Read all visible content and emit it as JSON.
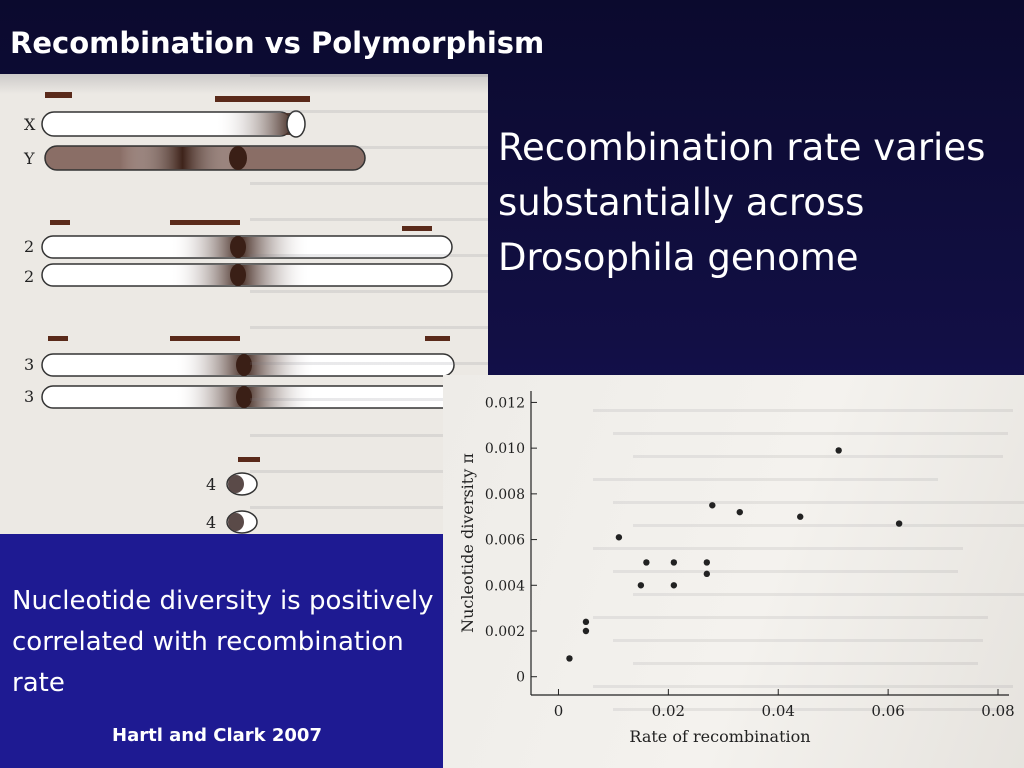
{
  "slide": {
    "title": "Recombination vs Polymorphism",
    "headline": "Recombination rate varies substantially across Drosophila genome",
    "caption": "Nucleotide diversity is positively correlated with recombination rate",
    "citation": "Hartl and Clark 2007"
  },
  "chromosome_figure": {
    "labels": [
      "X",
      "Y",
      "2",
      "2",
      "3",
      "3",
      "4",
      "4"
    ]
  },
  "chart_data": {
    "type": "scatter",
    "xlabel": "Rate of recombination",
    "ylabel": "Nucleotide diversity π",
    "xlim": [
      -0.005,
      0.082
    ],
    "ylim": [
      -0.0008,
      0.0125
    ],
    "xticks": [
      0,
      0.02,
      0.04,
      0.06,
      0.08
    ],
    "xtick_labels": [
      "0",
      "0.02",
      "0.04",
      "0.06",
      "0.08"
    ],
    "yticks": [
      0,
      0.002,
      0.004,
      0.006,
      0.008,
      0.01,
      0.012
    ],
    "ytick_labels": [
      "0",
      "0.002",
      "0.004",
      "0.006",
      "0.008",
      "0.010",
      "0.012"
    ],
    "point_color": "#222222",
    "points": [
      {
        "x": 0.002,
        "y": 0.0008
      },
      {
        "x": 0.005,
        "y": 0.002
      },
      {
        "x": 0.005,
        "y": 0.0024
      },
      {
        "x": 0.011,
        "y": 0.0061
      },
      {
        "x": 0.015,
        "y": 0.004
      },
      {
        "x": 0.016,
        "y": 0.005
      },
      {
        "x": 0.021,
        "y": 0.004
      },
      {
        "x": 0.021,
        "y": 0.005
      },
      {
        "x": 0.027,
        "y": 0.0045
      },
      {
        "x": 0.027,
        "y": 0.005
      },
      {
        "x": 0.028,
        "y": 0.0075
      },
      {
        "x": 0.033,
        "y": 0.0072
      },
      {
        "x": 0.044,
        "y": 0.007
      },
      {
        "x": 0.051,
        "y": 0.0099
      },
      {
        "x": 0.062,
        "y": 0.0067
      }
    ]
  }
}
